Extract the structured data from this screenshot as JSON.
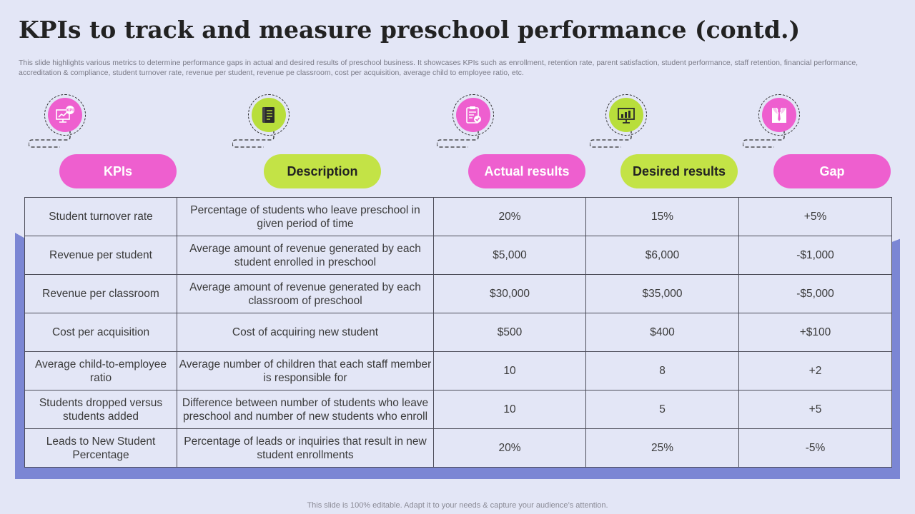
{
  "title": "KPIs to track and measure preschool performance (contd.)",
  "subtitle": "This slide highlights various metrics to determine performance gaps in actual and desired results of preschool business. It showcases KPIs such as enrollment, retention rate, parent satisfaction, student performance, staff retention, financial performance, accreditation & compliance, student turnover rate, revenue per student, revenue pe classroom, cost per acquisition, average child to employee ratio, etc.",
  "icons": {
    "kpi": {
      "name": "kpi-chart-icon",
      "label": "KPI"
    },
    "description": {
      "name": "document-icon"
    },
    "actual": {
      "name": "clipboard-check-icon"
    },
    "desired": {
      "name": "presentation-board-icon"
    },
    "gap": {
      "name": "suit-tie-icon"
    }
  },
  "headers": {
    "kpis": "KPIs",
    "description": "Description",
    "actual": "Actual results",
    "desired": "Desired results",
    "gap": "Gap"
  },
  "rows": [
    {
      "kpi": "Student turnover rate",
      "description": "Percentage of students who leave preschool in given period of time",
      "actual": "20%",
      "desired": "15%",
      "gap": "+5%"
    },
    {
      "kpi": "Revenue per student",
      "description": "Average amount of revenue generated by each student enrolled in preschool",
      "actual": "$5,000",
      "desired": "$6,000",
      "gap": "-$1,000"
    },
    {
      "kpi": "Revenue per classroom",
      "description": "Average amount of revenue generated by each classroom of preschool",
      "actual": "$30,000",
      "desired": "$35,000",
      "gap": "-$5,000"
    },
    {
      "kpi": "Cost per acquisition",
      "description": "Cost of acquiring new student",
      "actual": "$500",
      "desired": "$400",
      "gap": "+$100"
    },
    {
      "kpi": "Average child-to-employee ratio",
      "description": "Average number of children that each staff member is responsible for",
      "actual": "10",
      "desired": "8",
      "gap": "+2"
    },
    {
      "kpi": "Students dropped versus students added",
      "description": "Difference between number of students who leave preschool and number of new students who enroll",
      "actual": "10",
      "desired": "5",
      "gap": "+5"
    },
    {
      "kpi": "Leads to New Student Percentage",
      "description": "Percentage of leads or inquiries that result in new student enrollments",
      "actual": "20%",
      "desired": "25%",
      "gap": "-5%"
    }
  ],
  "footer": "This slide is 100% editable. Adapt it to your needs & capture your audience’s attention.",
  "colors": {
    "background": "#e3e6f6",
    "pink": "#ee5fcf",
    "green": "#c3e346",
    "backdrop": "#7b86d4"
  }
}
